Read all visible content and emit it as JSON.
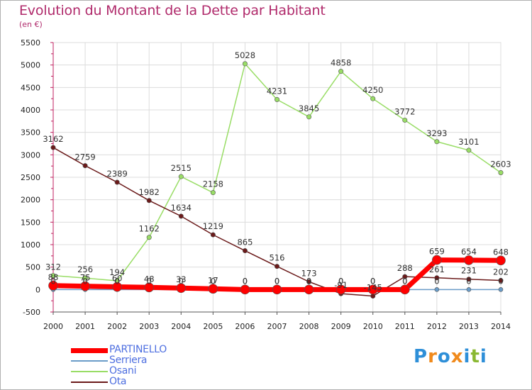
{
  "chart_data": {
    "type": "line",
    "title": "Evolution du Montant de la Dette par Habitant",
    "subtitle": "(en €)",
    "x": [
      "2000",
      "2001",
      "2002",
      "2003",
      "2004",
      "2005",
      "2006",
      "2007",
      "2008",
      "2009",
      "2010",
      "2011",
      "2012",
      "2013",
      "2014"
    ],
    "ylim": [
      -500,
      5500
    ],
    "yticks": [
      -500,
      0,
      500,
      1000,
      1500,
      2000,
      2500,
      3000,
      3500,
      4000,
      4500,
      5000,
      5500
    ],
    "grid": true,
    "legend_position": "bottom-left",
    "series": [
      {
        "name": "PARTINELLO",
        "color": "#ff0000",
        "values": [
          88,
          75,
          60,
          48,
          33,
          17,
          0,
          0,
          0,
          0,
          0,
          0,
          659,
          654,
          648
        ],
        "labels": [
          "88",
          "75",
          "60",
          "48",
          "33",
          "17",
          "0",
          "0",
          "0",
          "0",
          "0",
          "0",
          "659",
          "654",
          "648"
        ]
      },
      {
        "name": "Serriera",
        "color": "#6a9cc8",
        "values": [
          0,
          0,
          0,
          0,
          0,
          0,
          0,
          0,
          0,
          0,
          0,
          0,
          0,
          0,
          0
        ],
        "labels": [
          "0",
          "0",
          "0",
          "0",
          "0",
          "0",
          "0",
          "0",
          "0",
          "0",
          "0",
          "0",
          "0",
          "0",
          "0"
        ]
      },
      {
        "name": "Osani",
        "color": "#99dd66",
        "values": [
          312,
          256,
          194,
          1162,
          2515,
          2158,
          5028,
          4231,
          3845,
          4858,
          4250,
          3772,
          3293,
          3101,
          2603
        ],
        "labels": [
          "312",
          "256",
          "194",
          "1162",
          "2515",
          "2158",
          "5028",
          "4231",
          "3845",
          "4858",
          "4250",
          "3772",
          "3293",
          "3101",
          "2603"
        ]
      },
      {
        "name": "Ota",
        "color": "#6b1a1a",
        "values": [
          3162,
          2759,
          2389,
          1982,
          1634,
          1219,
          865,
          516,
          173,
          -91,
          -145,
          288,
          261,
          231,
          202
        ],
        "labels": [
          "3162",
          "2759",
          "2389",
          "1982",
          "1634",
          "1219",
          "865",
          "516",
          "173",
          "-91",
          "-145",
          "288",
          "261",
          "231",
          "202"
        ]
      }
    ]
  },
  "logo": {
    "text": "Proxiti"
  }
}
